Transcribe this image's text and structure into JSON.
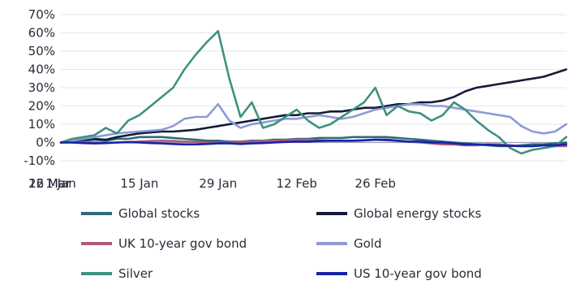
{
  "chart_data": {
    "type": "line",
    "x": [
      "1 Jan",
      "3 Jan",
      "5 Jan",
      "7 Jan",
      "9 Jan",
      "11 Jan",
      "13 Jan",
      "15 Jan",
      "17 Jan",
      "19 Jan",
      "21 Jan",
      "23 Jan",
      "25 Jan",
      "27 Jan",
      "29 Jan",
      "31 Jan",
      "2 Feb",
      "4 Feb",
      "6 Feb",
      "8 Feb",
      "10 Feb",
      "12 Feb",
      "14 Feb",
      "16 Feb",
      "18 Feb",
      "20 Feb",
      "22 Feb",
      "24 Feb",
      "26 Feb",
      "28 Feb",
      "1 Mar",
      "3 Mar",
      "5 Mar",
      "7 Mar",
      "9 Mar",
      "11 Mar",
      "13 Mar",
      "15 Mar",
      "17 Mar",
      "19 Mar",
      "21 Mar",
      "23 Mar",
      "25 Mar",
      "27 Mar",
      "29 Mar",
      "31 Mar"
    ],
    "x_ticks": [
      "1 Jan",
      "15 Jan",
      "29 Jan",
      "12 Feb",
      "26 Feb",
      "12 Mar",
      "26 Mar"
    ],
    "y_ticks": [
      "70%",
      "60%",
      "50%",
      "40%",
      "30%",
      "20%",
      "10%",
      "0%",
      "-10%"
    ],
    "ylim": [
      -10,
      70
    ],
    "y_unit": "%",
    "title": "",
    "xlabel": "",
    "ylabel": "",
    "grid": true,
    "legend_position": "bottom",
    "series": [
      {
        "name": "Global stocks",
        "color": "#2e6b7a",
        "values": [
          0,
          0.5,
          1,
          1.5,
          1,
          2,
          2,
          3,
          3,
          3,
          2.5,
          2,
          1.5,
          1,
          1,
          0.5,
          0.5,
          1,
          1,
          1.5,
          1.5,
          2,
          2,
          2.5,
          2.5,
          2.5,
          3,
          3,
          3,
          3,
          2.5,
          2,
          1.5,
          1,
          0.5,
          0,
          -0.5,
          -1,
          -1.5,
          -2,
          -2,
          -1.5,
          -1,
          -1,
          -0.5,
          0
        ]
      },
      {
        "name": "Global energy stocks",
        "color": "#141b3a",
        "values": [
          0,
          1,
          1.5,
          2,
          1.5,
          3,
          4,
          5,
          5.5,
          6,
          6,
          6.5,
          7,
          8,
          9,
          10,
          11,
          12,
          13,
          14,
          15,
          15,
          16,
          16,
          17,
          17,
          18,
          19,
          19,
          20,
          21,
          21,
          22,
          22,
          23,
          25,
          28,
          30,
          31,
          32,
          33,
          34,
          35,
          36,
          38,
          40
        ]
      },
      {
        "name": "UK 10-year gov bond",
        "color": "#b05a76",
        "values": [
          0,
          0,
          0.2,
          0,
          -0.2,
          0,
          0.3,
          0.5,
          0.8,
          1,
          0.8,
          0.5,
          0.3,
          0,
          -0.2,
          0,
          0.2,
          0.5,
          0.8,
          1,
          1.2,
          1.5,
          1.5,
          1.2,
          1,
          1,
          1,
          1.2,
          1.5,
          1.2,
          1,
          0.5,
          0,
          -0.5,
          -1,
          -1,
          -1.5,
          -1.5,
          -1,
          -1,
          -1.5,
          -2,
          -2,
          -1.5,
          -2,
          -2
        ]
      },
      {
        "name": "Gold",
        "color": "#8d9bd6",
        "values": [
          0,
          1,
          2,
          3,
          4,
          5,
          5.5,
          6,
          6.5,
          7,
          9,
          13,
          14,
          14,
          21,
          12,
          8,
          10,
          11,
          12,
          13,
          13,
          14,
          15,
          14,
          13,
          14,
          16,
          18,
          19,
          20,
          21,
          21,
          20,
          20,
          19,
          18,
          17,
          16,
          15,
          14,
          9,
          6,
          5,
          6,
          10
        ]
      },
      {
        "name": "Silver",
        "color": "#3f9180",
        "values": [
          0,
          2,
          3,
          4,
          8,
          5,
          12,
          15,
          20,
          25,
          30,
          40,
          48,
          55,
          61,
          35,
          14,
          22,
          8,
          10,
          14,
          18,
          12,
          8,
          10,
          14,
          18,
          22,
          30,
          15,
          20,
          17,
          16,
          12,
          15,
          22,
          18,
          12,
          7,
          3,
          -3,
          -6,
          -4,
          -3,
          -2,
          3
        ]
      },
      {
        "name": "US 10-year gov bond",
        "color": "#1622a8",
        "values": [
          0,
          0,
          -0.3,
          -0.5,
          -0.3,
          0,
          0.2,
          0,
          -0.3,
          -0.5,
          -0.8,
          -1,
          -1,
          -0.8,
          -0.5,
          -0.5,
          -0.8,
          -0.5,
          -0.3,
          0,
          0.3,
          0.5,
          0.5,
          0.8,
          1,
          1,
          1,
          1.2,
          1.5,
          1.5,
          1,
          0.5,
          0.5,
          0,
          0,
          -0.5,
          -1,
          -1,
          -1.2,
          -1.5,
          -1.8,
          -2,
          -2,
          -1.5,
          -1.5,
          -1
        ]
      }
    ]
  }
}
